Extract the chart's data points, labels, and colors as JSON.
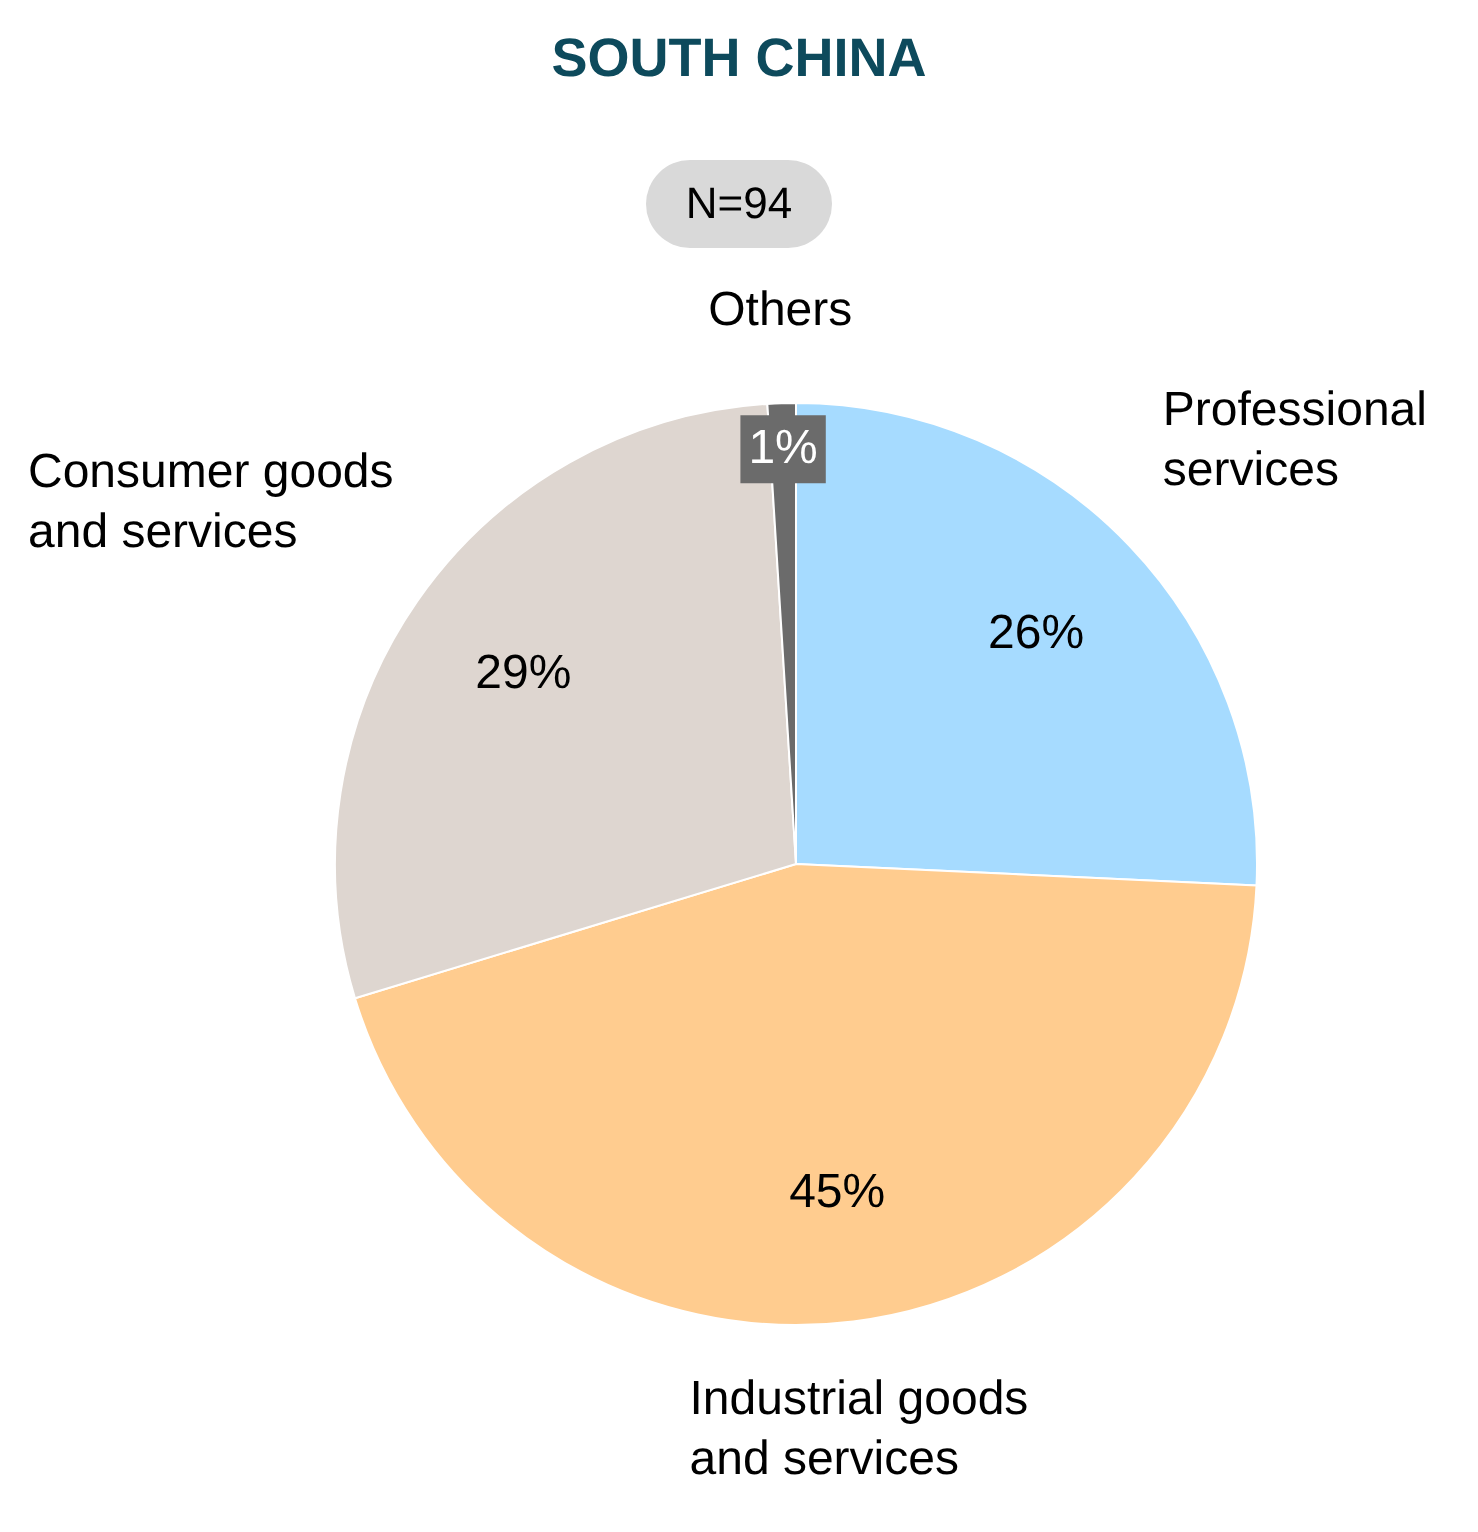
{
  "chart_data": {
    "type": "pie",
    "title": "SOUTH CHINA",
    "subtitle": "N=94",
    "categories": [
      "Professional services",
      "Industrial goods and services",
      "Consumer goods and services",
      "Others"
    ],
    "values": [
      26,
      45,
      29,
      1
    ],
    "colors": [
      "#a6dbff",
      "#ffcc8f",
      "#ded6d0",
      "#6b6b6b"
    ],
    "value_labels": [
      "26%",
      "45%",
      "29%",
      "1%"
    ],
    "legend": false
  }
}
